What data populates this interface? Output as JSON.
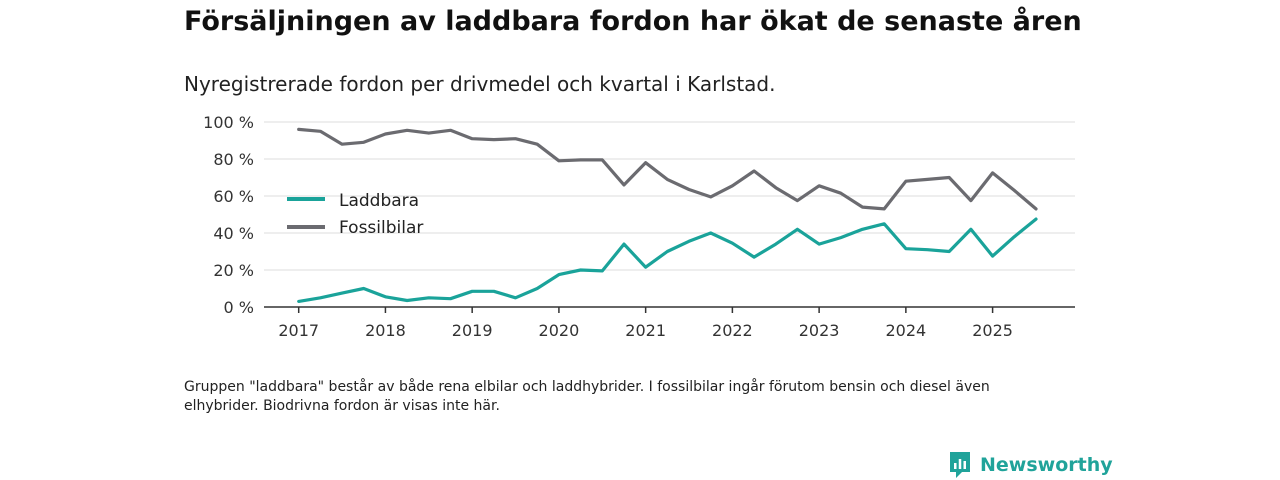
{
  "title": "Försäljningen av laddbara fordon har ökat de senaste åren",
  "subtitle": "Nyregistrerade fordon per drivmedel och kvartal i Karlstad.",
  "footnote": "Gruppen \"laddbara\" består av både rena elbilar och laddhybrider. I fossilbilar ingår förutom bensin och diesel även elhybrider. Biodrivna fordon är visas inte här.",
  "brand": {
    "name": "Newsworthy",
    "icon": "newsworthy-logo-icon"
  },
  "colors": {
    "laddbara": "#1aa39a",
    "fossil": "#6b6b70",
    "grid": "#dddddd",
    "axis": "#333333"
  },
  "chart_data": {
    "type": "line",
    "title": "Försäljningen av laddbara fordon har ökat de senaste åren",
    "xlabel": "",
    "ylabel": "",
    "ylim": [
      0,
      100
    ],
    "yticks": [
      0,
      20,
      40,
      60,
      80,
      100
    ],
    "ytick_labels": [
      "0 %",
      "20 %",
      "40 %",
      "60 %",
      "80 %",
      "100 %"
    ],
    "xlim": [
      2016.6,
      2025.95
    ],
    "xticks": [
      2017,
      2018,
      2019,
      2020,
      2021,
      2022,
      2023,
      2024,
      2025
    ],
    "xtick_labels": [
      "2017",
      "2018",
      "2019",
      "2020",
      "2021",
      "2022",
      "2023",
      "2024",
      "2025"
    ],
    "grid": true,
    "legend": "left-middle",
    "x": [
      2017.0,
      2017.25,
      2017.5,
      2017.75,
      2018.0,
      2018.25,
      2018.5,
      2018.75,
      2019.0,
      2019.25,
      2019.5,
      2019.75,
      2020.0,
      2020.25,
      2020.5,
      2020.75,
      2021.0,
      2021.25,
      2021.5,
      2021.75,
      2022.0,
      2022.25,
      2022.5,
      2022.75,
      2023.0,
      2023.25,
      2023.5,
      2023.75,
      2024.0,
      2024.25,
      2024.5,
      2024.75,
      2025.0,
      2025.25,
      2025.5
    ],
    "series": [
      {
        "name": "Laddbara",
        "color": "#1aa39a",
        "values": [
          3,
          5,
          7.5,
          10,
          5.5,
          3.5,
          5,
          4.5,
          8.5,
          8.5,
          5,
          10,
          17.5,
          20,
          19.5,
          34,
          21.5,
          30,
          35.5,
          40,
          34.5,
          27,
          34,
          42,
          34,
          37.5,
          42,
          45,
          31.5,
          31,
          30,
          42,
          27.5,
          38,
          47.5
        ]
      },
      {
        "name": "Fossilbilar",
        "color": "#6b6b70",
        "values": [
          96,
          95,
          88,
          89,
          93.5,
          95.5,
          94,
          95.5,
          91,
          90.5,
          91,
          88,
          79,
          79.5,
          79.5,
          66,
          78,
          69,
          63.5,
          59.5,
          65.5,
          73.5,
          64.5,
          57.5,
          65.5,
          61.5,
          54,
          53,
          68,
          69,
          70,
          57.5,
          72.5,
          63,
          53
        ]
      }
    ]
  }
}
